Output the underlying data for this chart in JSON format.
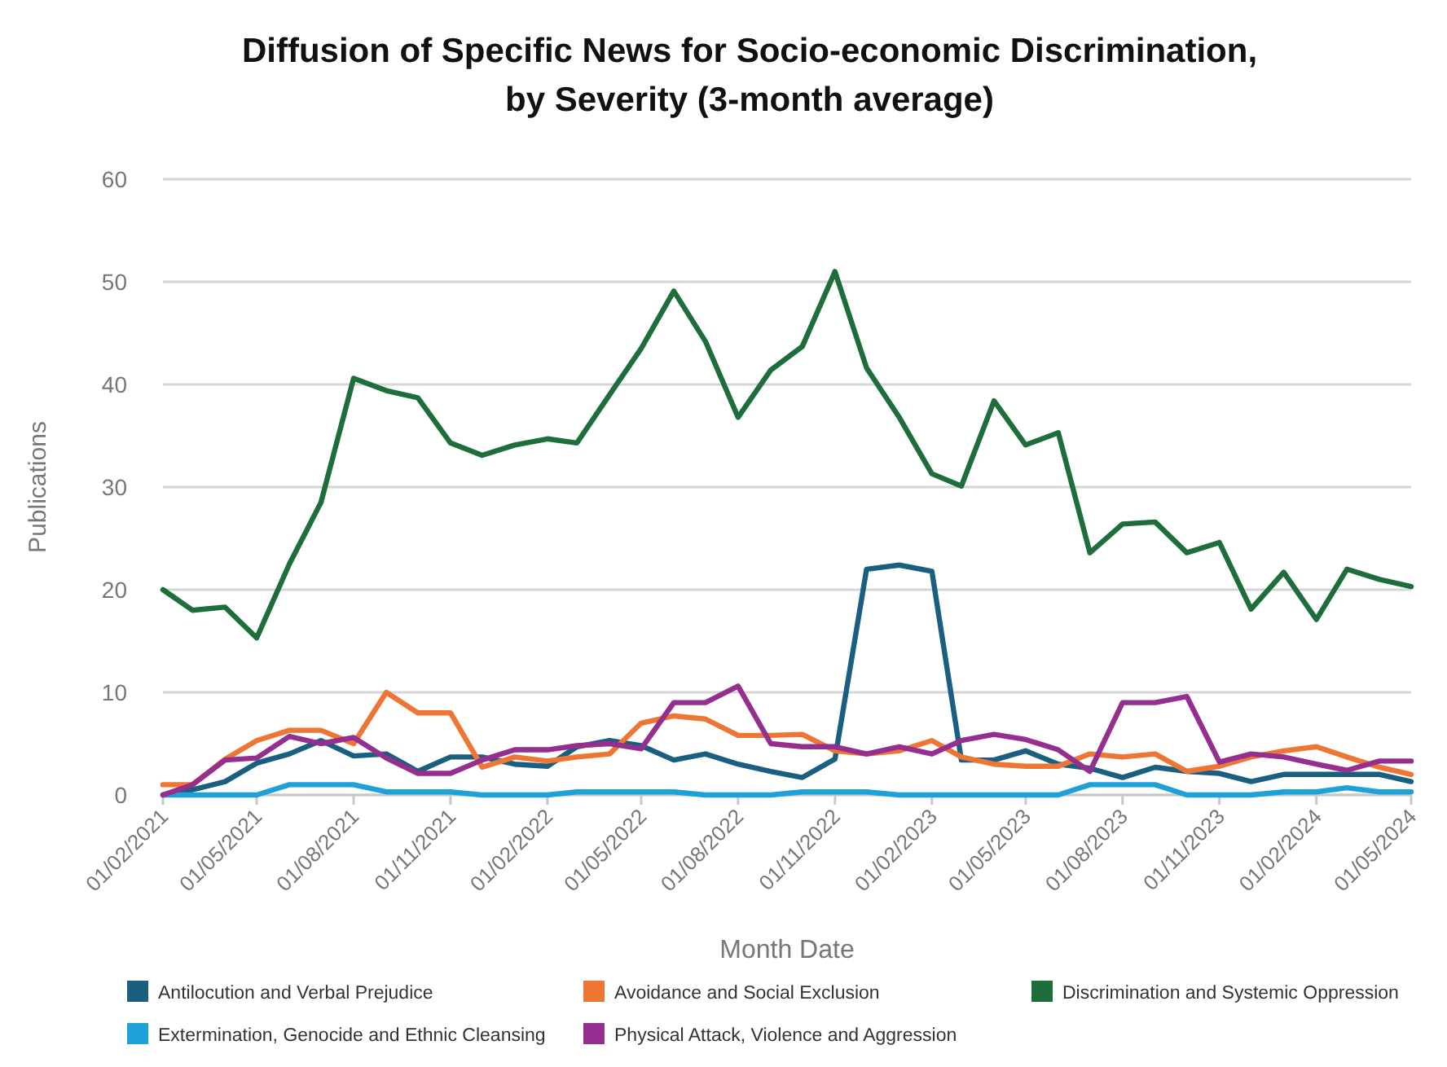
{
  "chart_data": {
    "type": "line",
    "title": "Diffusion of Specific News for Socio-economic Discrimination,\nby Severity (3-month average)",
    "xlabel": "Month Date",
    "ylabel": "Publications",
    "x": [
      "2021-02",
      "2021-03",
      "2021-04",
      "2021-05",
      "2021-06",
      "2021-07",
      "2021-08",
      "2021-09",
      "2021-10",
      "2021-11",
      "2021-12",
      "2022-01",
      "2022-02",
      "2022-03",
      "2022-04",
      "2022-05",
      "2022-06",
      "2022-07",
      "2022-08",
      "2022-09",
      "2022-10",
      "2022-11",
      "2022-12",
      "2023-01",
      "2023-02",
      "2023-03",
      "2023-04",
      "2023-05",
      "2023-06",
      "2023-07",
      "2023-08",
      "2023-09",
      "2023-10",
      "2023-11",
      "2023-12",
      "2024-01",
      "2024-02",
      "2024-03",
      "2024-04",
      "2024-05"
    ],
    "xlim": [
      "2021-02",
      "2024-05"
    ],
    "xticks": [
      {
        "value": "2021-02",
        "label": "01/02/2021"
      },
      {
        "value": "2021-05",
        "label": "01/05/2021"
      },
      {
        "value": "2021-08",
        "label": "01/08/2021"
      },
      {
        "value": "2021-11",
        "label": "01/11/2021"
      },
      {
        "value": "2022-02",
        "label": "01/02/2022"
      },
      {
        "value": "2022-05",
        "label": "01/05/2022"
      },
      {
        "value": "2022-08",
        "label": "01/08/2022"
      },
      {
        "value": "2022-11",
        "label": "01/11/2022"
      },
      {
        "value": "2023-02",
        "label": "01/02/2023"
      },
      {
        "value": "2023-05",
        "label": "01/05/2023"
      },
      {
        "value": "2023-08",
        "label": "01/08/2023"
      },
      {
        "value": "2023-11",
        "label": "01/11/2023"
      },
      {
        "value": "2024-02",
        "label": "01/02/2024"
      },
      {
        "value": "2024-05",
        "label": "01/05/2024"
      }
    ],
    "ylim": [
      0,
      60
    ],
    "yticks": [
      0,
      10,
      20,
      30,
      40,
      50,
      60
    ],
    "grid": "y",
    "legend": "bottom",
    "marker": "none",
    "line_style": "solid",
    "series": [
      {
        "name": "Antilocution and Verbal Prejudice",
        "color": "#1a5f80",
        "values": [
          0,
          0.5,
          1.3,
          3.1,
          4,
          5.3,
          3.8,
          4,
          2.3,
          3.7,
          3.7,
          3,
          2.8,
          4.7,
          5.3,
          4.8,
          3.4,
          4,
          3,
          2.3,
          1.7,
          3.5,
          22,
          22.4,
          21.8,
          3.4,
          3.4,
          4.3,
          3,
          2.6,
          1.7,
          2.7,
          2.3,
          2.1,
          1.3,
          2,
          2,
          2,
          2,
          1.3
        ]
      },
      {
        "name": "Avoidance and Social Exclusion",
        "color": "#ed7634",
        "values": [
          1,
          1,
          3.5,
          5.3,
          6.3,
          6.3,
          5,
          10,
          8,
          8,
          2.7,
          3.7,
          3.3,
          3.7,
          4,
          7,
          7.7,
          7.4,
          5.8,
          5.8,
          5.9,
          4.3,
          4,
          4.3,
          5.3,
          3.7,
          3,
          2.8,
          2.8,
          4,
          3.7,
          4,
          2.3,
          2.8,
          3.7,
          4.3,
          4.7,
          3.7,
          2.7,
          2
        ]
      },
      {
        "name": "Discrimination and Systemic Oppression",
        "color": "#1e6e3c",
        "values": [
          20,
          18,
          18.3,
          15.3,
          22.5,
          28.5,
          40.6,
          39.4,
          38.7,
          34.3,
          33.1,
          34.1,
          34.7,
          34.3,
          39,
          43.5,
          49.1,
          44.2,
          36.8,
          41.4,
          43.7,
          51,
          41.6,
          36.8,
          31.3,
          30.1,
          38.4,
          34.1,
          35.3,
          23.6,
          26.4,
          26.6,
          23.6,
          24.6,
          18.1,
          21.7,
          17.1,
          22,
          21,
          20.3
        ]
      },
      {
        "name": "Extermination, Genocide and Ethnic Cleansing",
        "color": "#1ea0d8",
        "values": [
          0,
          0,
          0,
          0,
          1,
          1,
          1,
          0.3,
          0.3,
          0.3,
          0,
          0,
          0,
          0.3,
          0.3,
          0.3,
          0.3,
          0,
          0,
          0,
          0.3,
          0.3,
          0.3,
          0,
          0,
          0,
          0,
          0,
          0,
          1,
          1,
          1,
          0,
          0,
          0,
          0.3,
          0.3,
          0.7,
          0.3,
          0.3
        ]
      },
      {
        "name": "Physical Attack, Violence and Aggression",
        "color": "#952f8f",
        "values": [
          0,
          1,
          3.4,
          3.6,
          5.7,
          5,
          5.6,
          3.6,
          2.1,
          2.1,
          3.4,
          4.4,
          4.4,
          4.8,
          5,
          4.5,
          9,
          9,
          10.6,
          5,
          4.7,
          4.7,
          4,
          4.7,
          4,
          5.3,
          5.9,
          5.4,
          4.4,
          2.3,
          9,
          9,
          9.6,
          3.2,
          4,
          3.7,
          3,
          2.4,
          3.3,
          3.3
        ]
      }
    ]
  }
}
